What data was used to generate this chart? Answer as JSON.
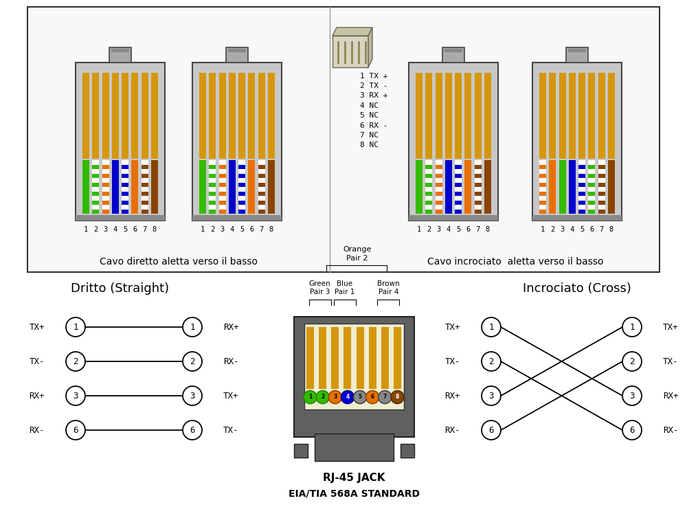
{
  "bg_color": "#ffffff",
  "connector_body_color": "#c8c8c8",
  "connector_border_color": "#555555",
  "gold_color": "#d4960a",
  "pin_labels": [
    "1",
    "2",
    "3",
    "4",
    "5",
    "6",
    "7",
    "8"
  ],
  "title_top_left": "Cavo diretto aletta verso il basso",
  "title_top_right": "Cavo incrociato  aletta verso il basso",
  "pin_functions": [
    "1 TX +",
    "2 TX -",
    "3 RX +",
    "4 NC",
    "5 NC",
    "6 RX -",
    "7 NC",
    "8 NC"
  ],
  "straight_title": "Dritto (Straight)",
  "cross_title": "Incrociato (Cross)",
  "rj45_label1": "RJ-45 JACK",
  "rj45_label2": "EIA/TIA 568A STANDARD",
  "straight_wires": [
    [
      "#33bb00",
      "#33bb00"
    ],
    [
      "#33bb00",
      "#ffffff"
    ],
    [
      "#e87000",
      "#ffffff"
    ],
    [
      "#0000cc",
      "#0000cc"
    ],
    [
      "#0000cc",
      "#ffffff"
    ],
    [
      "#e87000",
      "#e87000"
    ],
    [
      "#884400",
      "#ffffff"
    ],
    [
      "#884400",
      "#884400"
    ]
  ],
  "cross_left_wires": [
    [
      "#33bb00",
      "#33bb00"
    ],
    [
      "#33bb00",
      "#ffffff"
    ],
    [
      "#e87000",
      "#ffffff"
    ],
    [
      "#0000cc",
      "#0000cc"
    ],
    [
      "#0000cc",
      "#ffffff"
    ],
    [
      "#e87000",
      "#e87000"
    ],
    [
      "#884400",
      "#ffffff"
    ],
    [
      "#884400",
      "#884400"
    ]
  ],
  "cross_right_wires": [
    [
      "#e87000",
      "#ffffff"
    ],
    [
      "#e87000",
      "#e87000"
    ],
    [
      "#33bb00",
      "#33bb00"
    ],
    [
      "#0000cc",
      "#0000cc"
    ],
    [
      "#0000cc",
      "#ffffff"
    ],
    [
      "#33bb00",
      "#ffffff"
    ],
    [
      "#884400",
      "#ffffff"
    ],
    [
      "#884400",
      "#884400"
    ]
  ],
  "jack_pin_colors": [
    "#33bb00",
    "#33bb00",
    "#e87000",
    "#0000cc",
    "#888888",
    "#e87000",
    "#888888",
    "#884400"
  ],
  "jack_pin_outlines": [
    "#228800",
    "#228800",
    "#994400",
    "#000099",
    "#444444",
    "#994400",
    "#444444",
    "#553300"
  ],
  "jack_pin_text_colors": [
    "#000000",
    "#000000",
    "#000000",
    "#ffffff",
    "#000000",
    "#000000",
    "#000000",
    "#ffffff"
  ]
}
